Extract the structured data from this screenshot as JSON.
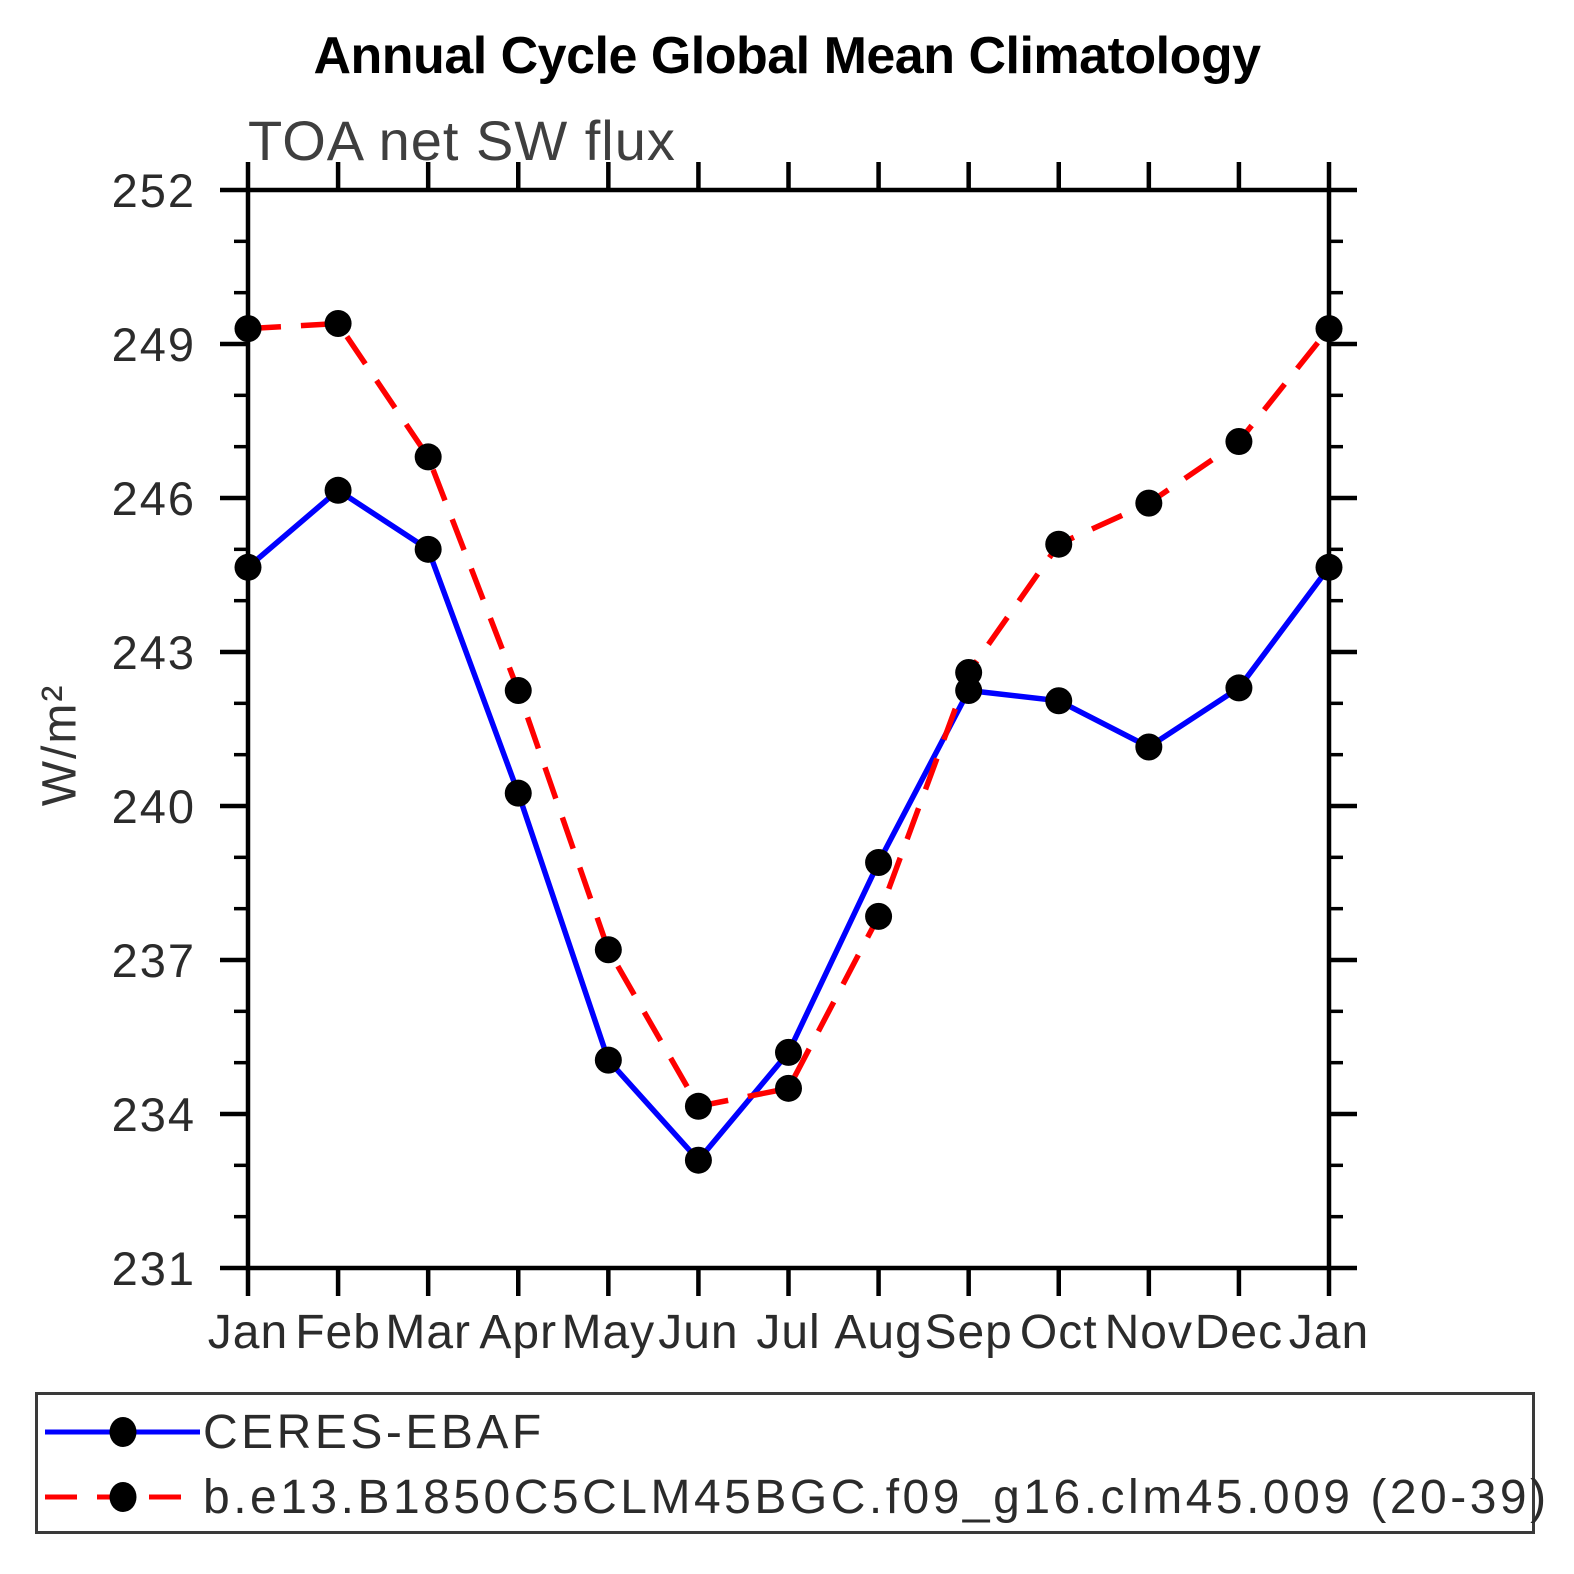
{
  "title": "Annual Cycle Global Mean Climatology",
  "subtitle": "TOA net SW flux",
  "chart_data": {
    "type": "line",
    "title": "Annual Cycle Global Mean Climatology",
    "subtitle": "TOA net SW flux",
    "xlabel": "",
    "ylabel": "W/m²",
    "categories": [
      "Jan",
      "Feb",
      "Mar",
      "Apr",
      "May",
      "Jun",
      "Jul",
      "Aug",
      "Sep",
      "Oct",
      "Nov",
      "Dec",
      "Jan"
    ],
    "ylim": [
      231,
      252
    ],
    "ytick_major": [
      231,
      234,
      237,
      240,
      243,
      246,
      249,
      252
    ],
    "ytick_minor_step": 1,
    "grid": false,
    "legend_position": "bottom",
    "marker": "filled-circle",
    "marker_color": "#000000",
    "series": [
      {
        "name": "CERES-EBAF",
        "color": "#0000ff",
        "style": "solid",
        "values": [
          244.65,
          246.15,
          245.0,
          240.25,
          235.05,
          233.1,
          235.2,
          238.9,
          242.25,
          242.05,
          241.15,
          242.3,
          244.65
        ]
      },
      {
        "name": "b.e13.B1850C5CLM45BGC.f09_g16.clm45.009 (20-39)",
        "color": "#ff0000",
        "style": "dashed",
        "values": [
          249.3,
          249.4,
          246.8,
          242.25,
          237.2,
          234.15,
          234.5,
          237.85,
          242.6,
          245.1,
          245.9,
          247.1,
          249.3
        ]
      }
    ]
  },
  "colors": {
    "axis": "#000000",
    "text": "#2b2b2b",
    "background": "#ffffff",
    "ceres_line": "#0000ff",
    "model_line": "#ff0000",
    "marker": "#000000"
  }
}
